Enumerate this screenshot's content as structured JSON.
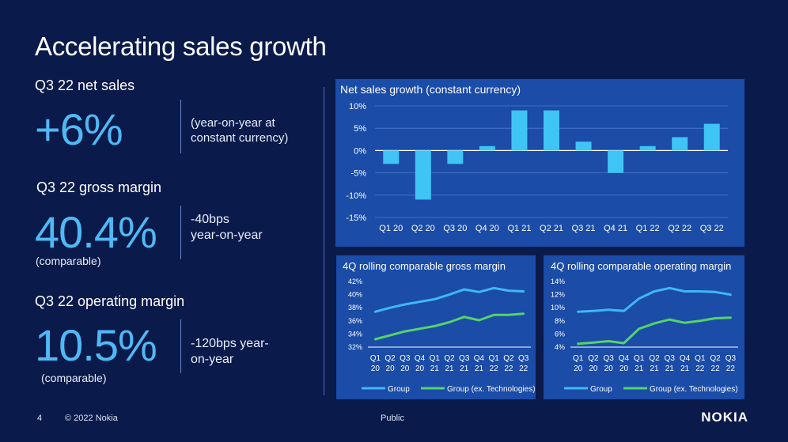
{
  "title": "Accelerating sales growth",
  "kpis": [
    {
      "label": "Q3 22 net sales",
      "value": "+6%",
      "sub": "",
      "desc": [
        "(year-on-year at",
        "constant currency)"
      ]
    },
    {
      "label": "Q3 22 gross margin",
      "value": "40.4%",
      "sub": "(comparable)",
      "desc": [
        "-40bps",
        "year-on-year"
      ]
    },
    {
      "label": "Q3 22 operating margin",
      "value": "10.5%",
      "sub": "(comparable)",
      "desc": [
        "-120bps year-",
        "on-year"
      ]
    }
  ],
  "colors": {
    "background": "#0a1a4a",
    "panel": "#1a4ca8",
    "accent": "#4fb9f5",
    "bar": "#3fc4f5",
    "group_line": "#3fb8f5",
    "ex_tech_line": "#55d36a"
  },
  "chart_data": [
    {
      "type": "bar",
      "title": "Net sales growth (constant currency)",
      "categories": [
        "Q1 20",
        "Q2 20",
        "Q3 20",
        "Q4 20",
        "Q1 21",
        "Q2 21",
        "Q3 21",
        "Q4 21",
        "Q1 22",
        "Q2 22",
        "Q3 22"
      ],
      "values": [
        -3,
        -11,
        -3,
        1,
        9,
        9,
        2,
        -5,
        1,
        3,
        6
      ],
      "ylim": [
        -15,
        10
      ],
      "yticks": [
        10,
        5,
        0,
        -5,
        -10,
        -15
      ],
      "ytick_labels": [
        "10%",
        "5%",
        "0%",
        "-5%",
        "-10%",
        "-15%"
      ],
      "grid": true
    },
    {
      "type": "line",
      "title": "4Q rolling comparable gross margin",
      "categories": [
        [
          "Q1",
          "20"
        ],
        [
          "Q2",
          "20"
        ],
        [
          "Q3",
          "20"
        ],
        [
          "Q4",
          "20"
        ],
        [
          "Q1",
          "21"
        ],
        [
          "Q2",
          "21"
        ],
        [
          "Q3",
          "21"
        ],
        [
          "Q4",
          "21"
        ],
        [
          "Q1",
          "22"
        ],
        [
          "Q2",
          "22"
        ],
        [
          "Q3",
          "22"
        ]
      ],
      "series": [
        {
          "name": "Group",
          "values": [
            37.4,
            38.0,
            38.5,
            38.9,
            39.3,
            40.0,
            40.8,
            40.4,
            41.0,
            40.6,
            40.5
          ]
        },
        {
          "name": "Group (ex. Technologies)",
          "values": [
            33.2,
            33.8,
            34.4,
            34.8,
            35.2,
            35.8,
            36.6,
            36.1,
            36.9,
            36.9,
            37.1
          ]
        }
      ],
      "ylim": [
        32,
        42
      ],
      "yticks": [
        42,
        40,
        38,
        36,
        34,
        32
      ],
      "ytick_labels": [
        "42%",
        "40%",
        "38%",
        "36%",
        "34%",
        "32%"
      ],
      "legend": "bottom"
    },
    {
      "type": "line",
      "title": "4Q rolling comparable operating margin",
      "categories": [
        [
          "Q1",
          "20"
        ],
        [
          "Q2",
          "20"
        ],
        [
          "Q3",
          "20"
        ],
        [
          "Q4",
          "20"
        ],
        [
          "Q1",
          "21"
        ],
        [
          "Q2",
          "21"
        ],
        [
          "Q3",
          "21"
        ],
        [
          "Q4",
          "21"
        ],
        [
          "Q1",
          "22"
        ],
        [
          "Q2",
          "22"
        ],
        [
          "Q3",
          "22"
        ]
      ],
      "series": [
        {
          "name": "Group",
          "values": [
            9.4,
            9.5,
            9.7,
            9.5,
            11.4,
            12.5,
            13.0,
            12.5,
            12.5,
            12.4,
            12.0
          ]
        },
        {
          "name": "Group (ex. Technologies)",
          "values": [
            4.5,
            4.7,
            4.9,
            4.6,
            6.8,
            7.6,
            8.2,
            7.7,
            8.0,
            8.4,
            8.5
          ]
        }
      ],
      "ylim": [
        4,
        14
      ],
      "yticks": [
        14,
        12,
        10,
        8,
        6,
        4
      ],
      "ytick_labels": [
        "14%",
        "12%",
        "10%",
        "8%",
        "6%",
        "4%"
      ],
      "legend": "bottom"
    }
  ],
  "footer": {
    "page": "4",
    "copyright": "© 2022 Nokia",
    "classification": "Public",
    "logo": "NOKIA"
  }
}
